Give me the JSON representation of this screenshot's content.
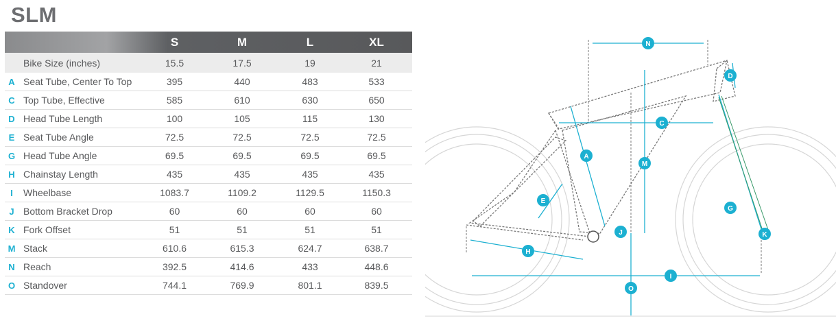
{
  "title": "SLM",
  "table": {
    "sizes": [
      "S",
      "M",
      "L",
      "XL"
    ],
    "bike_size_label": "Bike Size (inches)",
    "bike_size_values": [
      "15.5",
      "17.5",
      "19",
      "21"
    ],
    "rows": [
      {
        "letter": "A",
        "name": "Seat Tube, Center To Top",
        "values": [
          "395",
          "440",
          "483",
          "533"
        ]
      },
      {
        "letter": "C",
        "name": "Top Tube, Effective",
        "values": [
          "585",
          "610",
          "630",
          "650"
        ]
      },
      {
        "letter": "D",
        "name": "Head Tube Length",
        "values": [
          "100",
          "105",
          "115",
          "130"
        ]
      },
      {
        "letter": "E",
        "name": "Seat Tube Angle",
        "values": [
          "72.5",
          "72.5",
          "72.5",
          "72.5"
        ]
      },
      {
        "letter": "G",
        "name": "Head Tube Angle",
        "values": [
          "69.5",
          "69.5",
          "69.5",
          "69.5"
        ]
      },
      {
        "letter": "H",
        "name": "Chainstay Length",
        "values": [
          "435",
          "435",
          "435",
          "435"
        ]
      },
      {
        "letter": "I",
        "name": "Wheelbase",
        "values": [
          "1083.7",
          "1109.2",
          "1129.5",
          "1150.3"
        ]
      },
      {
        "letter": "J",
        "name": "Bottom Bracket Drop",
        "values": [
          "60",
          "60",
          "60",
          "60"
        ]
      },
      {
        "letter": "K",
        "name": "Fork Offset",
        "values": [
          "51",
          "51",
          "51",
          "51"
        ]
      },
      {
        "letter": "M",
        "name": "Stack",
        "values": [
          "610.6",
          "615.3",
          "624.7",
          "638.7"
        ]
      },
      {
        "letter": "N",
        "name": "Reach",
        "values": [
          "392.5",
          "414.6",
          "433",
          "448.6"
        ]
      },
      {
        "letter": "O",
        "name": "Standover",
        "values": [
          "744.1",
          "769.9",
          "801.1",
          "839.5"
        ]
      }
    ]
  },
  "diagram": {
    "accent_color": "#1cb0d1",
    "labels": [
      "N",
      "D",
      "C",
      "A",
      "M",
      "E",
      "G",
      "J",
      "K",
      "H",
      "I",
      "O"
    ]
  }
}
